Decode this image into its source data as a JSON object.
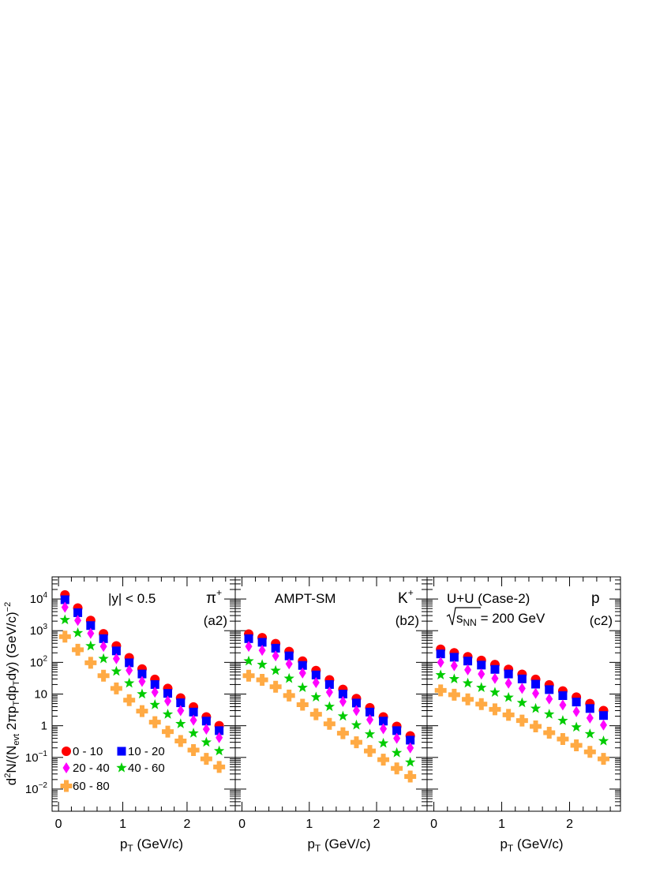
{
  "chart_data": {
    "type": "scatter",
    "x_scale": "linear",
    "y_scale": "log",
    "xlim": [
      -0.1,
      2.75
    ],
    "ylim": [
      0.002,
      50000
    ],
    "x_ticks": [
      0,
      1,
      2
    ],
    "y_ticks": [
      {
        "value": 10000,
        "base": "10",
        "exp": "4"
      },
      {
        "value": 1000,
        "base": "10",
        "exp": "3"
      },
      {
        "value": 100,
        "base": "10",
        "exp": "2"
      },
      {
        "value": 10,
        "base": "10",
        "exp": ""
      },
      {
        "value": 1,
        "base": "1",
        "exp": ""
      },
      {
        "value": 0.1,
        "base": "10",
        "exp": "−1"
      },
      {
        "value": 0.01,
        "base": "10",
        "exp": "−2"
      }
    ],
    "xlabel": {
      "main": "p",
      "sub": "T",
      "rest": " (GeV/c)"
    },
    "ylabel": {
      "parts": [
        {
          "t": "d",
          "s": ""
        },
        {
          "t": "2",
          "s": "sup"
        },
        {
          "t": "N/(N",
          "s": ""
        },
        {
          "t": "evt",
          "s": "sub"
        },
        {
          "t": " 2πp",
          "s": ""
        },
        {
          "t": "T",
          "s": "sub"
        },
        {
          "t": "dp",
          "s": ""
        },
        {
          "t": "T",
          "s": "sub"
        },
        {
          "t": "dy) (GeV/c)",
          "s": ""
        },
        {
          "t": "−2",
          "s": "sup"
        }
      ]
    },
    "series_meta": [
      {
        "name": "0 - 10",
        "color": "#ff0000",
        "marker": "circle"
      },
      {
        "name": "10 - 20",
        "color": "#0000ff",
        "marker": "square"
      },
      {
        "name": "20 - 40",
        "color": "#ff00ff",
        "marker": "diamond"
      },
      {
        "name": "40 - 60",
        "color": "#00cc00",
        "marker": "star"
      },
      {
        "name": "60 - 80",
        "color": "#ffaa44",
        "marker": "cross"
      }
    ],
    "x": [
      0.1,
      0.3,
      0.5,
      0.7,
      0.9,
      1.1,
      1.3,
      1.5,
      1.7,
      1.9,
      2.1,
      2.3,
      2.5
    ],
    "panels": [
      {
        "particle": "π",
        "charge": "+",
        "tag": "(a2)",
        "annotation": "|y| < 0.5",
        "series": [
          {
            "name": "0 - 10",
            "values": [
              13500,
              5200,
              2100,
              800,
              330,
              140,
              62,
              29,
              15,
              7.5,
              3.9,
              1.9,
              1.0
            ]
          },
          {
            "name": "10 - 20",
            "values": [
              9500,
              3700,
              1450,
              560,
              230,
              97,
              43,
              20,
              10.5,
              5.3,
              2.7,
              1.4,
              0.7
            ]
          },
          {
            "name": "20 - 40",
            "values": [
              5500,
              2100,
              820,
              320,
              130,
              56,
              25,
              11.5,
              6.0,
              3.0,
              1.5,
              0.78,
              0.42
            ]
          },
          {
            "name": "40 - 60",
            "values": [
              2200,
              850,
              330,
              130,
              52,
              22,
              10,
              4.6,
              2.3,
              1.15,
              0.58,
              0.3,
              0.16
            ]
          },
          {
            "name": "60 - 80",
            "values": [
              650,
              250,
              97,
              38,
              15,
              6.4,
              2.9,
              1.3,
              0.65,
              0.33,
              0.17,
              0.09,
              0.05
            ]
          }
        ]
      },
      {
        "particle": "K",
        "charge": "+",
        "tag": "(b2)",
        "annotation": "AMPT-SM",
        "series": [
          {
            "name": "0 - 10",
            "values": [
              780,
              600,
              390,
              220,
              110,
              55,
              28,
              14,
              7.2,
              3.7,
              1.9,
              0.95,
              0.48
            ]
          },
          {
            "name": "10 - 20",
            "values": [
              560,
              430,
              280,
              160,
              80,
              40,
              20,
              10,
              5.2,
              2.7,
              1.4,
              0.7,
              0.35
            ]
          },
          {
            "name": "20 - 40",
            "values": [
              320,
              240,
              160,
              90,
              46,
              23,
              11.5,
              5.8,
              3.0,
              1.55,
              0.8,
              0.4,
              0.2
            ]
          },
          {
            "name": "40 - 60",
            "values": [
              110,
              85,
              55,
              31,
              16,
              8,
              4,
              2.0,
              1.05,
              0.54,
              0.28,
              0.14,
              0.07
            ]
          },
          {
            "name": "60 - 80",
            "values": [
              38,
              28,
              17,
              9,
              4.6,
              2.3,
              1.15,
              0.58,
              0.3,
              0.16,
              0.085,
              0.045,
              0.025
            ]
          }
        ]
      },
      {
        "particle": "p",
        "charge": "",
        "tag": "(c2)",
        "annotation": "U+U (Case-2)",
        "energy": {
          "sqrt": "s",
          "sub": "NN",
          "rest": " = 200 GeV"
        },
        "series": [
          {
            "name": "0 - 10",
            "values": [
              260,
              200,
              150,
              115,
              85,
              60,
              42,
              29,
              19.5,
              12.5,
              8,
              5,
              3
            ]
          },
          {
            "name": "10 - 20",
            "values": [
              185,
              145,
              110,
              82,
              60,
              43,
              30,
              20.5,
              13.8,
              8.9,
              5.6,
              3.5,
              2.1
            ]
          },
          {
            "name": "20 - 40",
            "values": [
              100,
              78,
              58,
              43,
              31,
              22,
              15,
              10.5,
              7,
              4.5,
              2.8,
              1.75,
              1.05
            ]
          },
          {
            "name": "40 - 60",
            "values": [
              40,
              30,
              22,
              16,
              11.3,
              7.8,
              5.3,
              3.5,
              2.3,
              1.45,
              0.9,
              0.55,
              0.33
            ]
          },
          {
            "name": "60 - 80",
            "values": [
              13,
              9.5,
              6.8,
              4.8,
              3.3,
              2.2,
              1.45,
              0.95,
              0.6,
              0.38,
              0.24,
              0.15,
              0.09
            ]
          }
        ]
      }
    ]
  }
}
